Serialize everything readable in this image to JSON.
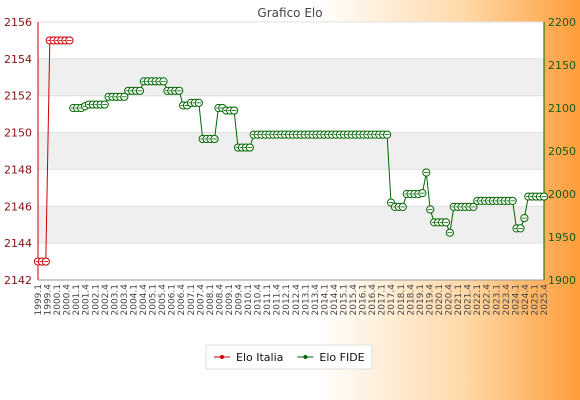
{
  "chart_data": {
    "type": "line",
    "title": "Grafico Elo",
    "xlabel": "",
    "y_left": {
      "ylim": [
        2142,
        2156
      ],
      "ticks": [
        2142,
        2144,
        2146,
        2148,
        2150,
        2152,
        2154,
        2156
      ],
      "color": "#cc0000"
    },
    "y_right": {
      "ylim": [
        1900,
        2200
      ],
      "ticks": [
        1900,
        1950,
        2000,
        2050,
        2100,
        2150,
        2200
      ],
      "color": "#006600"
    },
    "grid": "horizontal bands",
    "legend_position": "bottom",
    "series": [
      {
        "name": "Elo Italia",
        "axis": "left",
        "color": "#cc0000",
        "x": [
          1,
          2,
          3,
          4,
          5,
          6,
          7,
          8,
          9
        ],
        "values": [
          2143,
          2143,
          2143,
          2155,
          2155,
          2155,
          2155,
          2155,
          2155
        ]
      },
      {
        "name": "Elo FIDE",
        "axis": "right",
        "color": "#006600",
        "x": [
          10,
          11,
          12,
          13,
          14,
          15,
          16,
          17,
          18,
          19,
          20,
          21,
          22,
          23,
          24,
          25,
          26,
          27,
          28,
          29,
          30,
          31,
          32,
          33,
          34,
          35,
          36,
          37,
          38,
          39,
          40,
          41,
          42,
          43,
          44,
          45,
          46,
          47,
          48,
          49,
          50,
          51,
          52,
          53,
          54,
          55,
          56,
          57,
          58,
          59,
          60,
          61,
          62,
          63,
          64,
          65,
          66,
          67,
          68,
          69,
          70,
          71,
          72,
          73,
          74,
          75,
          76,
          77,
          78,
          79,
          80,
          81,
          82,
          83,
          84,
          85,
          86,
          87,
          88,
          89,
          90,
          91,
          92,
          93,
          94,
          95,
          96,
          97,
          98,
          99,
          100,
          101,
          102,
          103,
          104,
          105,
          106,
          107,
          108,
          109,
          110,
          111,
          112,
          113,
          114,
          115,
          116,
          117,
          118,
          119,
          120,
          121,
          122,
          123,
          124,
          125,
          126,
          127,
          128,
          129,
          130
        ],
        "values": [
          2100,
          2100,
          2100,
          2102,
          2104,
          2104,
          2104,
          2104,
          2104,
          2113,
          2113,
          2113,
          2113,
          2113,
          2120,
          2120,
          2120,
          2120,
          2131,
          2131,
          2131,
          2131,
          2131,
          2131,
          2120,
          2120,
          2120,
          2120,
          2103,
          2103,
          2106,
          2106,
          2106,
          2064,
          2064,
          2064,
          2064,
          2100,
          2100,
          2097,
          2097,
          2097,
          2054,
          2054,
          2054,
          2054,
          2069,
          2069,
          2069,
          2069,
          2069,
          2069,
          2069,
          2069,
          2069,
          2069,
          2069,
          2069,
          2069,
          2069,
          2069,
          2069,
          2069,
          2069,
          2069,
          2069,
          2069,
          2069,
          2069,
          2069,
          2069,
          2069,
          2069,
          2069,
          2069,
          2069,
          2069,
          2069,
          2069,
          2069,
          2069,
          1990,
          1985,
          1985,
          1985,
          2000,
          2000,
          2000,
          2000,
          2001,
          2025,
          1982,
          1967,
          1967,
          1967,
          1967,
          1955,
          1985,
          1985,
          1985,
          1985,
          1985,
          1985,
          1992,
          1992,
          1992,
          1992,
          1992,
          1992,
          1992,
          1992,
          1992,
          1992,
          1960,
          1960,
          1972,
          1997,
          1997,
          1997,
          1997,
          1997
        ]
      }
    ],
    "x_tick_labels": [
      "1999.1",
      "1999.4",
      "2000.1",
      "2000.4",
      "2001.1",
      "2001.4",
      "2002.1",
      "2002.4",
      "2003.1",
      "2003.4",
      "2004.1",
      "2004.4",
      "2005.1",
      "2005.4",
      "2006.1",
      "2006.4",
      "2007.1",
      "2007.4",
      "2008.1",
      "2008.4",
      "2009.1",
      "2009.4",
      "2010.1",
      "2010.4",
      "2011.1",
      "2011.4",
      "2012.1",
      "2012.4",
      "2013.1",
      "2013.4",
      "2014.1",
      "2014.4",
      "2015.1",
      "2015.4",
      "2016.1",
      "2016.4",
      "2017.1",
      "2017.4",
      "2018.1",
      "2018.4",
      "2019.1",
      "2019.4",
      "2020.1",
      "2020.4",
      "2021.1",
      "2021.4",
      "2022.1",
      "2022.4",
      "2023.1",
      "2023.4",
      "2024.1",
      "2024.4",
      "2025.1",
      "2025.4"
    ]
  }
}
